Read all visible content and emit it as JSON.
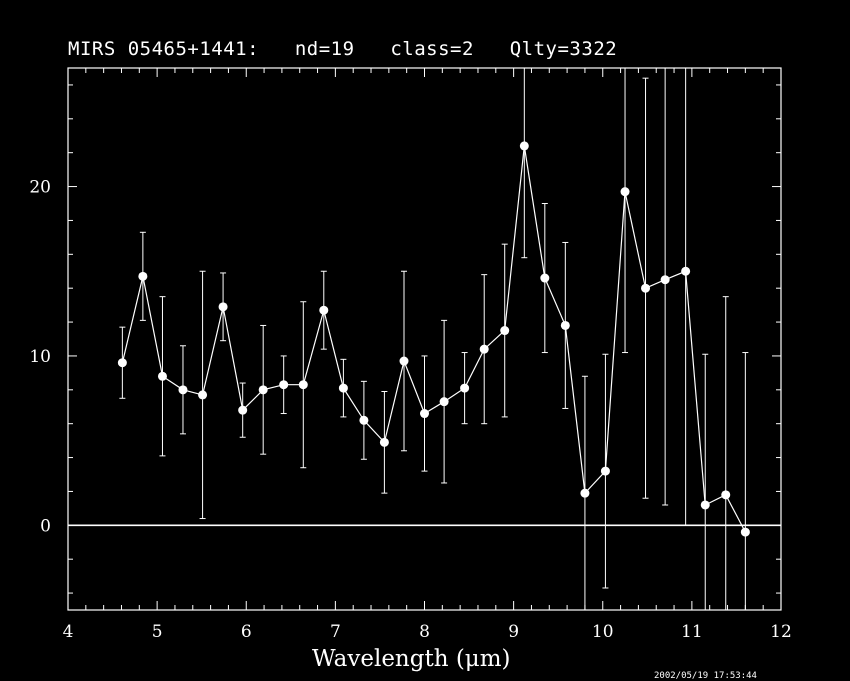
{
  "chart_data": {
    "type": "scatter",
    "title": "MIRS 05465+1441:   nd=19   class=2   Qlty=3322",
    "xlabel": "Wavelength (μm)",
    "ylabel": "",
    "xlim": [
      4,
      12
    ],
    "ylim": [
      -5,
      27
    ],
    "xticks": [
      4,
      5,
      6,
      7,
      8,
      9,
      10,
      11,
      12
    ],
    "yticks": [
      0,
      10,
      20
    ],
    "zero_line": true,
    "grid": false,
    "series": [
      {
        "style": "line-with-markers-and-errorbars",
        "points": [
          {
            "x": 4.61,
            "y": 9.6,
            "err": 2.1
          },
          {
            "x": 4.84,
            "y": 14.7,
            "err": 2.6
          },
          {
            "x": 5.06,
            "y": 8.8,
            "err": 4.7
          },
          {
            "x": 5.29,
            "y": 8.0,
            "err": 2.6
          },
          {
            "x": 5.51,
            "y": 7.7,
            "err": 7.3
          },
          {
            "x": 5.74,
            "y": 12.9,
            "err": 2.0
          },
          {
            "x": 5.96,
            "y": 6.8,
            "err": 1.6
          },
          {
            "x": 6.19,
            "y": 8.0,
            "err": 3.8
          },
          {
            "x": 6.42,
            "y": 8.3,
            "err": 1.7
          },
          {
            "x": 6.64,
            "y": 8.3,
            "err": 4.9
          },
          {
            "x": 6.87,
            "y": 12.7,
            "err": 2.3
          },
          {
            "x": 7.09,
            "y": 8.1,
            "err": 1.7
          },
          {
            "x": 7.32,
            "y": 6.2,
            "err": 2.3
          },
          {
            "x": 7.55,
            "y": 4.9,
            "err": 3.0
          },
          {
            "x": 7.77,
            "y": 9.7,
            "err": 5.3
          },
          {
            "x": 8.0,
            "y": 6.6,
            "err": 3.4
          },
          {
            "x": 8.22,
            "y": 7.3,
            "err": 4.8
          },
          {
            "x": 8.45,
            "y": 8.1,
            "err": 2.1
          },
          {
            "x": 8.67,
            "y": 10.4,
            "err": 4.4
          },
          {
            "x": 8.9,
            "y": 11.5,
            "err": 5.1
          },
          {
            "x": 9.12,
            "y": 22.4,
            "err": 6.6
          },
          {
            "x": 9.35,
            "y": 14.6,
            "err": 4.4
          },
          {
            "x": 9.58,
            "y": 11.8,
            "err": 4.9
          },
          {
            "x": 9.8,
            "y": 1.9,
            "err": 6.9
          },
          {
            "x": 10.03,
            "y": 3.2,
            "err": 6.9
          },
          {
            "x": 10.25,
            "y": 19.7,
            "err": 9.5
          },
          {
            "x": 10.48,
            "y": 14.0,
            "err": 12.4
          },
          {
            "x": 10.7,
            "y": 14.5,
            "err": 13.3
          },
          {
            "x": 10.93,
            "y": 15.0,
            "err": 15.0
          },
          {
            "x": 11.15,
            "y": 1.2,
            "err": 8.9
          },
          {
            "x": 11.38,
            "y": 1.8,
            "err": 11.7
          },
          {
            "x": 11.6,
            "y": -0.4,
            "err": 10.6
          }
        ]
      }
    ]
  },
  "timestamp": "2002/05/19 17:53:44"
}
